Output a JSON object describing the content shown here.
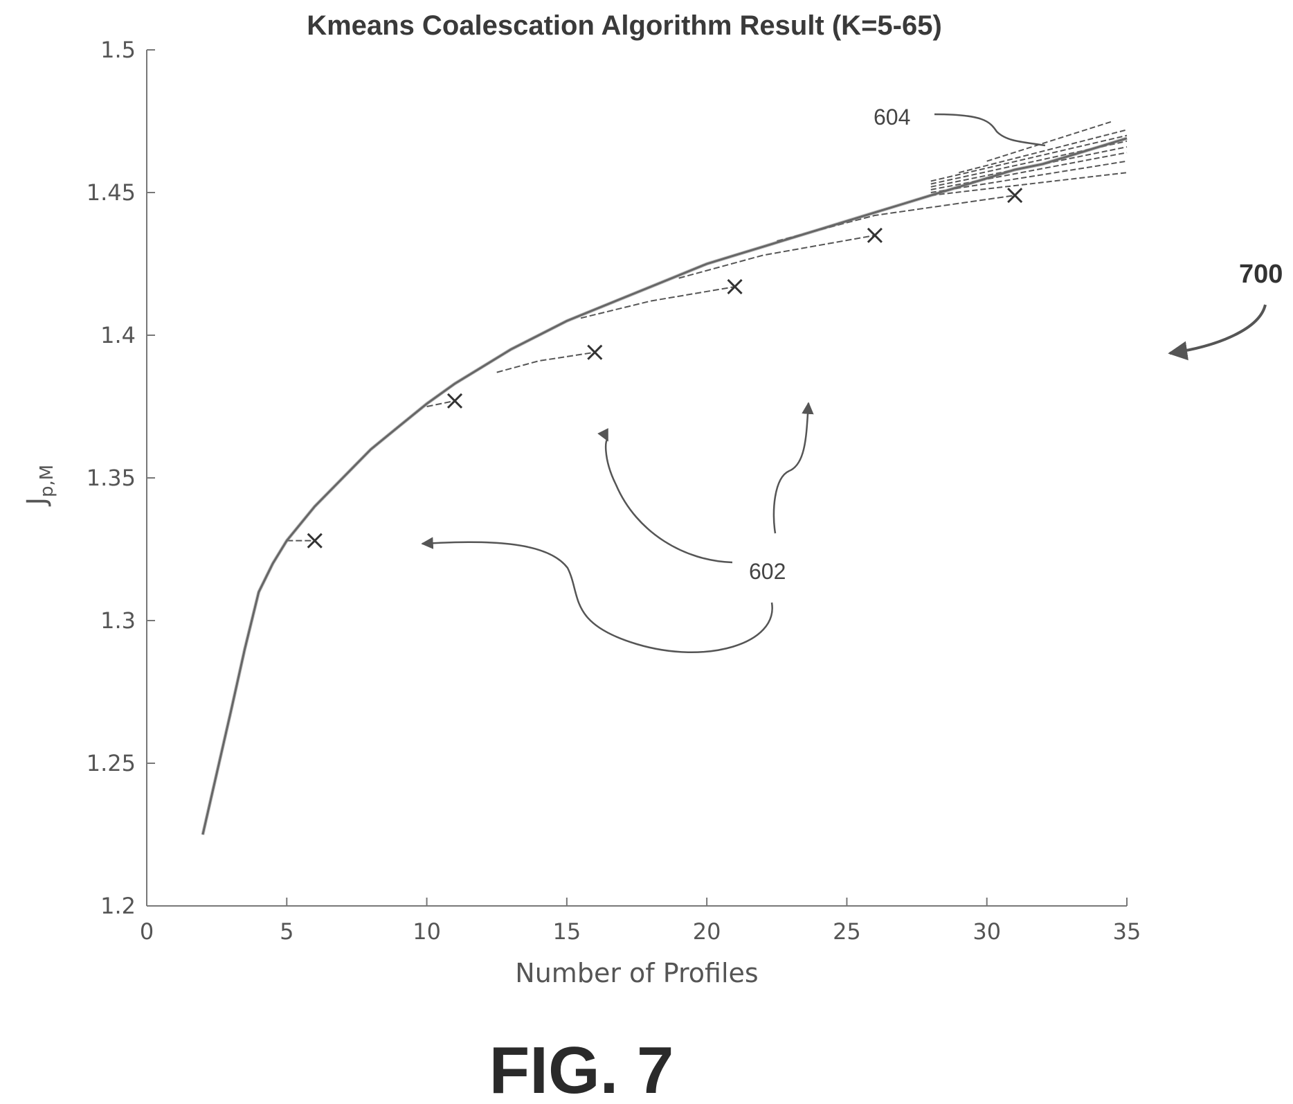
{
  "chart_data": {
    "type": "line",
    "title": "Kmeans Coalescation Algorithm Result (K=5-65)",
    "xlabel": "Number of Profiles",
    "ylabel": "J",
    "ylabel_subscript": "p,M",
    "xlim": [
      0,
      35
    ],
    "ylim": [
      1.2,
      1.5
    ],
    "xticks": [
      0,
      5,
      10,
      15,
      20,
      25,
      30,
      35
    ],
    "xtick_labels": [
      "0",
      "5",
      "10",
      "15",
      "20",
      "25",
      "30",
      "35"
    ],
    "yticks": [
      1.2,
      1.25,
      1.3,
      1.35,
      1.4,
      1.45,
      1.5
    ],
    "ytick_labels": [
      "1.2",
      "1.25",
      "1.3",
      "1.35",
      "1.4",
      "1.45",
      "1.5"
    ],
    "grid": false,
    "main_curve": {
      "x": [
        2,
        3,
        3.5,
        4,
        4.5,
        5,
        6,
        7,
        8,
        9,
        10,
        11,
        12,
        13,
        14,
        15,
        16,
        17,
        18,
        19,
        20,
        21,
        22,
        23,
        24,
        25,
        26,
        27,
        28,
        29,
        30,
        31,
        32,
        33,
        34,
        35
      ],
      "y": [
        1.225,
        1.268,
        1.29,
        1.31,
        1.32,
        1.328,
        1.34,
        1.35,
        1.36,
        1.368,
        1.376,
        1.383,
        1.389,
        1.395,
        1.4,
        1.405,
        1.409,
        1.413,
        1.417,
        1.421,
        1.425,
        1.428,
        1.431,
        1.434,
        1.437,
        1.44,
        1.443,
        1.446,
        1.449,
        1.452,
        1.455,
        1.458,
        1.46,
        1.463,
        1.466,
        1.469
      ]
    },
    "endpoints": {
      "x": [
        6,
        11,
        16,
        21,
        26,
        31
      ],
      "y": [
        1.328,
        1.377,
        1.394,
        1.417,
        1.435,
        1.449
      ]
    },
    "branches": [
      {
        "x": [
          5,
          6
        ],
        "y": [
          1.328,
          1.328
        ]
      },
      {
        "x": [
          10,
          11
        ],
        "y": [
          1.375,
          1.377
        ]
      },
      {
        "x": [
          12.5,
          14,
          16
        ],
        "y": [
          1.387,
          1.391,
          1.394
        ]
      },
      {
        "x": [
          15.5,
          18,
          21
        ],
        "y": [
          1.406,
          1.412,
          1.417
        ]
      },
      {
        "x": [
          19,
          22,
          26
        ],
        "y": [
          1.42,
          1.428,
          1.435
        ]
      },
      {
        "x": [
          22.5,
          26,
          31
        ],
        "y": [
          1.433,
          1.442,
          1.449
        ]
      }
    ],
    "fan_lines": [
      {
        "x": [
          28,
          35
        ],
        "y": [
          1.449,
          1.457
        ]
      },
      {
        "x": [
          28,
          35
        ],
        "y": [
          1.45,
          1.461
        ]
      },
      {
        "x": [
          28,
          35
        ],
        "y": [
          1.451,
          1.464
        ]
      },
      {
        "x": [
          28,
          35
        ],
        "y": [
          1.452,
          1.466
        ]
      },
      {
        "x": [
          28,
          35
        ],
        "y": [
          1.453,
          1.468
        ]
      },
      {
        "x": [
          28,
          35
        ],
        "y": [
          1.454,
          1.47
        ]
      },
      {
        "x": [
          29,
          35
        ],
        "y": [
          1.457,
          1.472
        ]
      },
      {
        "x": [
          30,
          34.5
        ],
        "y": [
          1.461,
          1.475
        ]
      }
    ],
    "annotations": [
      {
        "label": "604",
        "target": [
          31.5,
          1.465
        ]
      },
      {
        "label": "602",
        "targets": [
          [
            10,
            1.328
          ],
          [
            16.5,
            1.363
          ],
          [
            23.7,
            1.376
          ]
        ]
      },
      {
        "label": "700"
      }
    ]
  },
  "figure": {
    "caption": "FIG. 7"
  }
}
